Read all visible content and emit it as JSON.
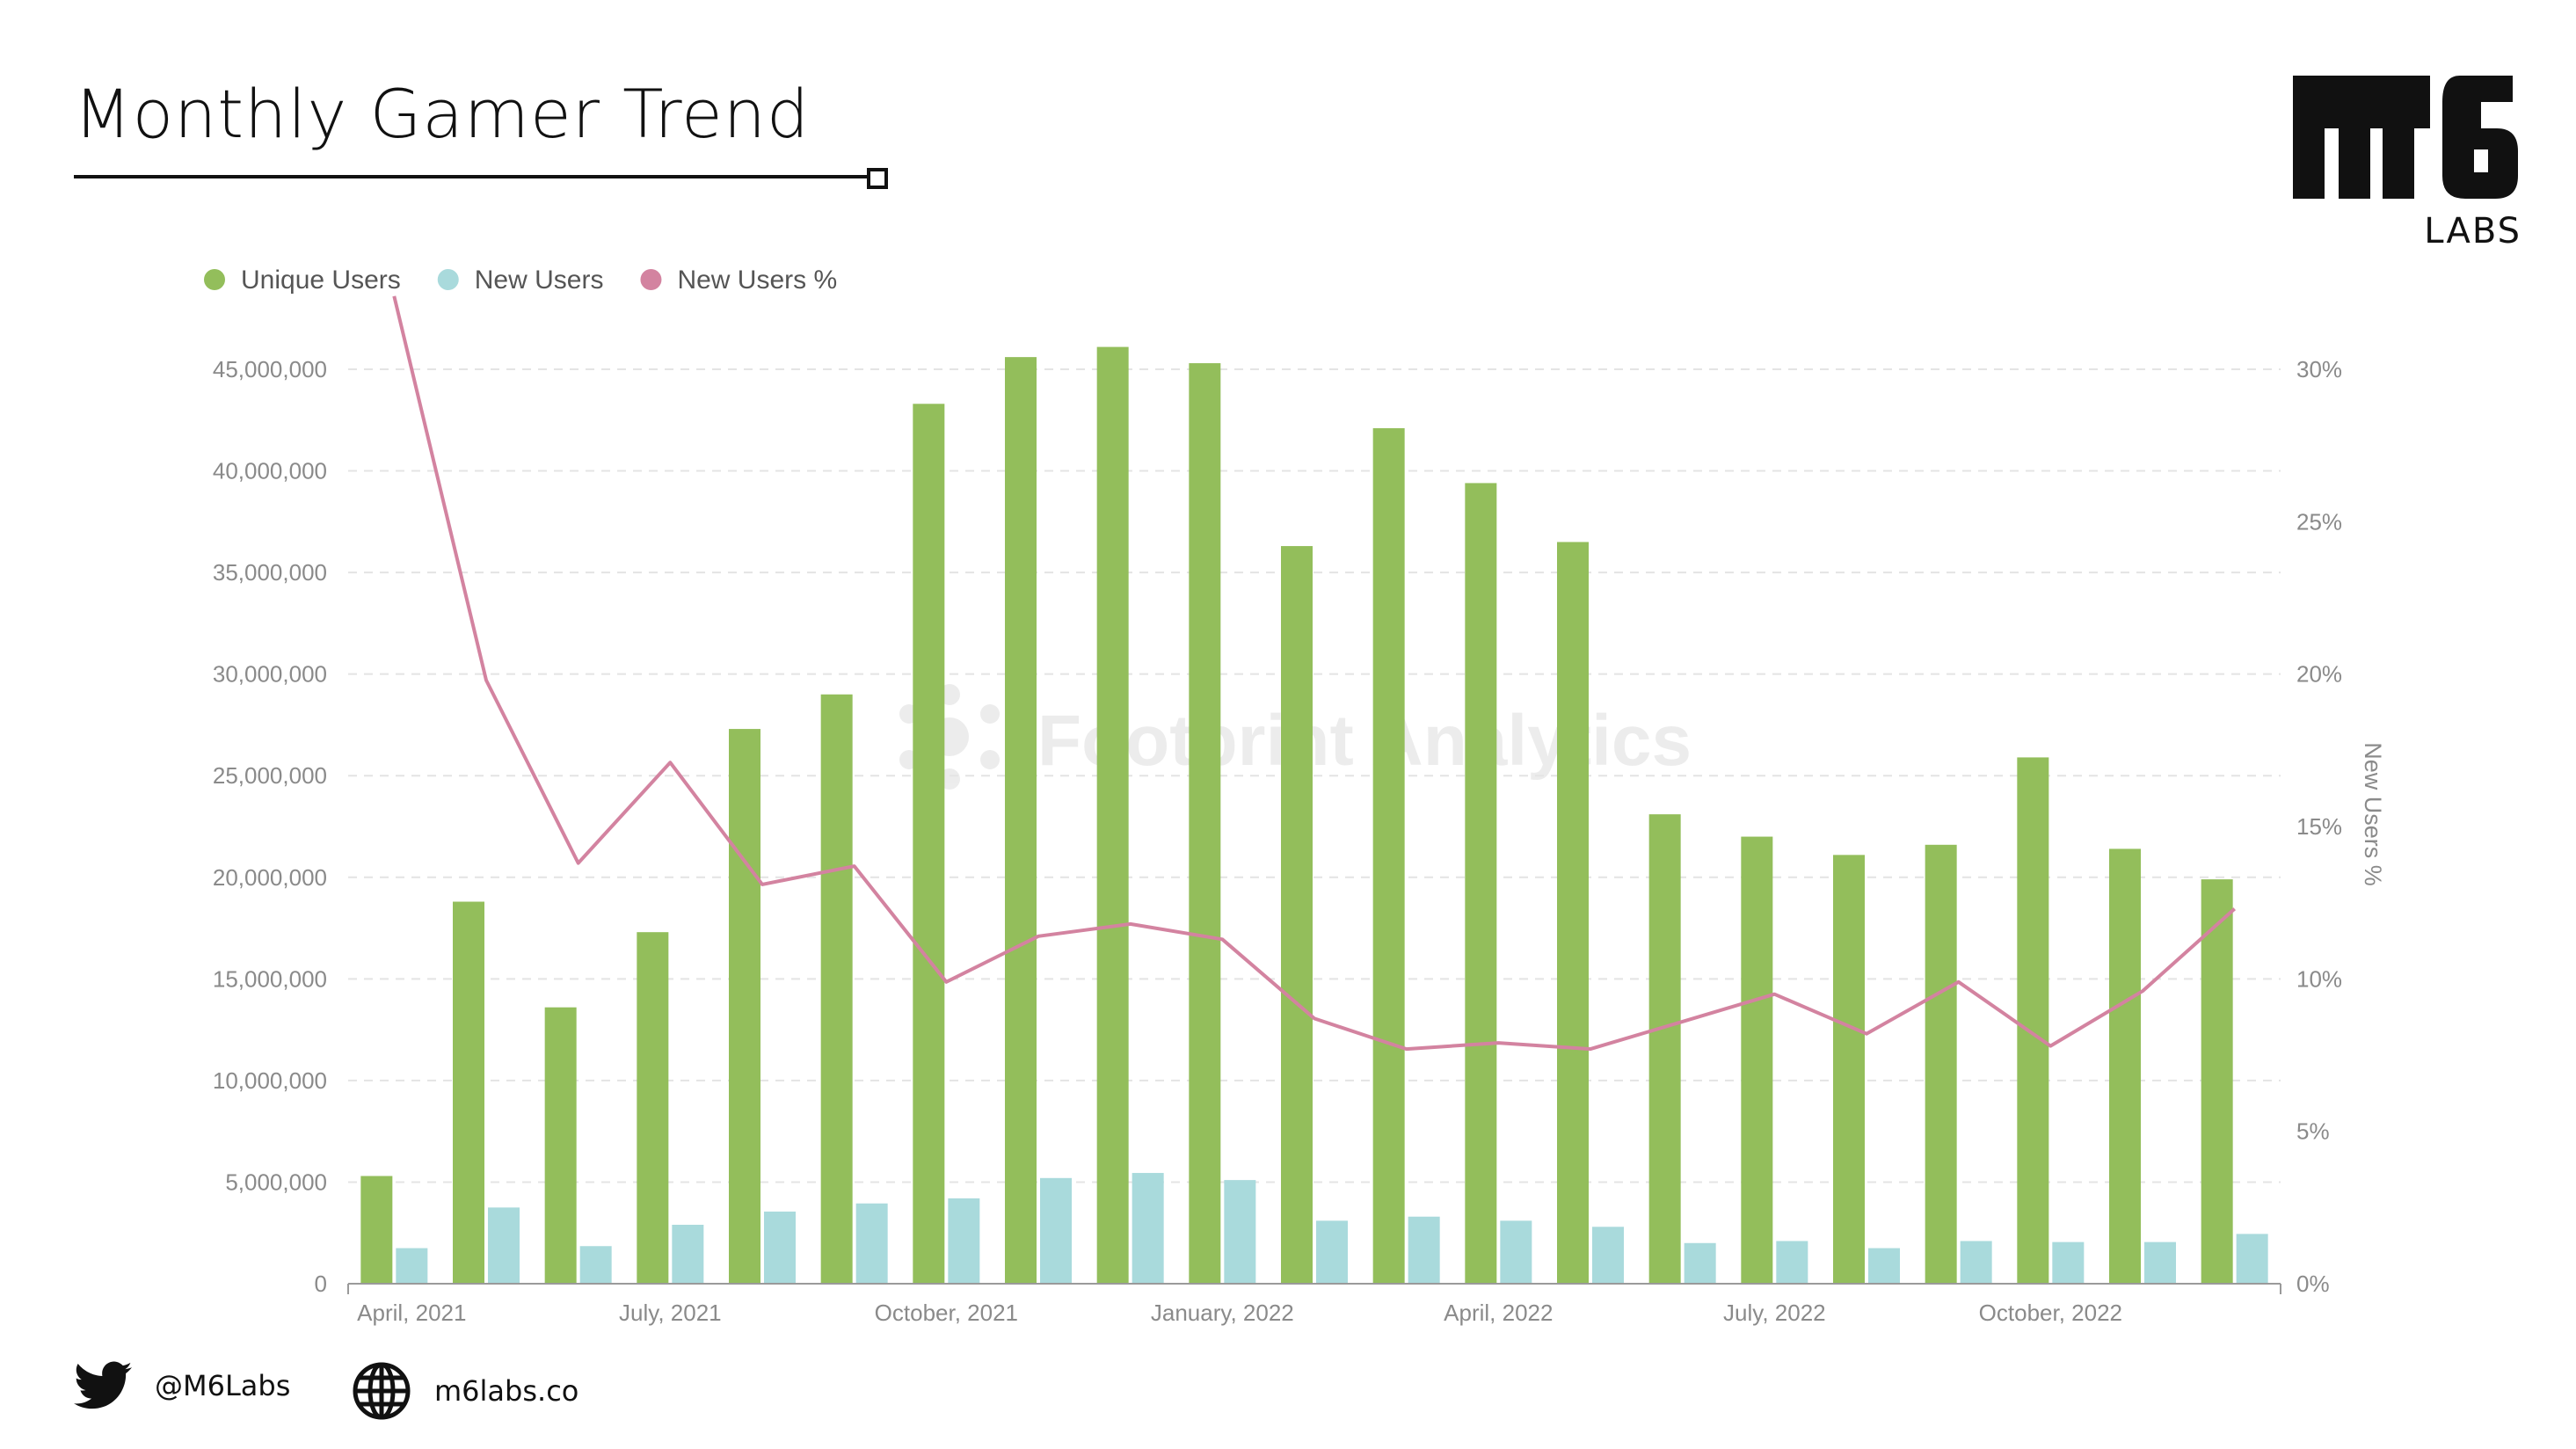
{
  "header": {
    "title": "Monthly Gamer Trend",
    "logo_text": "LABS"
  },
  "watermark": "Footprint Analytics",
  "footer": {
    "twitter_handle": "@M6Labs",
    "website": "m6labs.co"
  },
  "colors": {
    "unique_users": "#93be5b",
    "new_users": "#a9dadc",
    "new_users_pct": "#d383a0",
    "axis_text": "#8a8a8a",
    "grid": "#e4e4e4"
  },
  "chart_data": {
    "type": "bar",
    "categories": [
      "2021-04",
      "2021-05",
      "2021-06",
      "2021-07",
      "2021-08",
      "2021-09",
      "2021-10",
      "2021-11",
      "2021-12",
      "2022-01",
      "2022-02",
      "2022-03",
      "2022-04",
      "2022-05",
      "2022-06",
      "2022-07",
      "2022-08",
      "2022-09",
      "2022-10",
      "2022-11",
      "2022-12"
    ],
    "x_tick_labels": [
      {
        "index": 0,
        "label": "April, 2021"
      },
      {
        "index": 3,
        "label": "July, 2021"
      },
      {
        "index": 6,
        "label": "October, 2021"
      },
      {
        "index": 9,
        "label": "January, 2022"
      },
      {
        "index": 12,
        "label": "April, 2022"
      },
      {
        "index": 15,
        "label": "July, 2022"
      },
      {
        "index": 18,
        "label": "October, 2022"
      }
    ],
    "series": [
      {
        "name": "Unique Users",
        "type": "bar",
        "axis": "left",
        "values": [
          5300000,
          18800000,
          13600000,
          17300000,
          27300000,
          29000000,
          43300000,
          45600000,
          46100000,
          45300000,
          36300000,
          42100000,
          39400000,
          36500000,
          23100000,
          22000000,
          21100000,
          21600000,
          25900000,
          21400000,
          19900000
        ]
      },
      {
        "name": "New Users",
        "type": "bar",
        "axis": "left",
        "values": [
          1750000,
          3750000,
          1850000,
          2900000,
          3550000,
          3950000,
          4200000,
          5200000,
          5450000,
          5100000,
          3100000,
          3300000,
          3100000,
          2800000,
          2000000,
          2100000,
          1750000,
          2100000,
          2050000,
          2050000,
          2450000
        ]
      },
      {
        "name": "New Users %",
        "type": "line",
        "axis": "right",
        "values": [
          32.4,
          19.8,
          13.8,
          17.1,
          13.1,
          13.7,
          9.9,
          11.4,
          11.8,
          11.3,
          8.7,
          7.7,
          7.9,
          7.7,
          8.6,
          9.5,
          8.2,
          9.9,
          7.8,
          9.6,
          12.3
        ]
      }
    ],
    "y_left": {
      "ticks": [
        "0",
        "5,000,000",
        "10,000,000",
        "15,000,000",
        "20,000,000",
        "25,000,000",
        "30,000,000",
        "35,000,000",
        "40,000,000",
        "45,000,000"
      ],
      "ylim": [
        0,
        45000000
      ]
    },
    "y_right": {
      "label": "New Users %",
      "ticks": [
        "0%",
        "5%",
        "10%",
        "15%",
        "20%",
        "25%",
        "30%"
      ],
      "ylim": [
        0,
        30
      ]
    },
    "legend_position": "top-left",
    "grid": true
  }
}
